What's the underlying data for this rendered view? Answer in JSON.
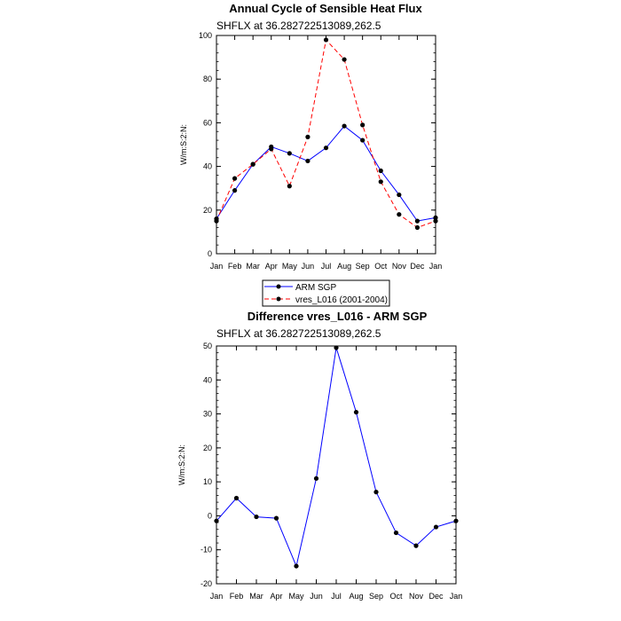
{
  "months": [
    "Jan",
    "Feb",
    "Mar",
    "Apr",
    "May",
    "Jun",
    "Jul",
    "Aug",
    "Sep",
    "Oct",
    "Nov",
    "Dec",
    "Jan"
  ],
  "chart_data": [
    {
      "type": "line",
      "title": "Annual Cycle of Sensible Heat Flux",
      "subtitle": "SHFLX at 36.282722513089,262.5",
      "ylabel": "W/m:S:2:N:",
      "ylim": [
        0,
        100
      ],
      "yticks": [
        "0",
        "20",
        "40",
        "60",
        "80",
        "100"
      ],
      "series": [
        {
          "name": "ARM SGP",
          "color": "#0000ff",
          "dash": "solid",
          "values": [
            16.0,
            29.0,
            41.0,
            49.0,
            46.0,
            42.5,
            48.5,
            58.5,
            52.0,
            38.0,
            27.0,
            15.0,
            16.5
          ]
        },
        {
          "name": "vres_L016 (2001-2004)",
          "color": "#ff0000",
          "dash": "dashed",
          "values": [
            15.0,
            34.5,
            41.0,
            48.0,
            31.0,
            53.5,
            98.0,
            89.0,
            59.0,
            33.0,
            18.0,
            12.0,
            15.0
          ]
        }
      ],
      "legend": [
        "ARM SGP",
        "vres_L016 (2001-2004)"
      ]
    },
    {
      "type": "line",
      "title": "Difference vres_L016 - ARM SGP",
      "subtitle": "SHFLX at 36.282722513089,262.5",
      "ylabel": "W/m:S:2:N:",
      "ylim": [
        -20,
        50
      ],
      "yticks": [
        "-20",
        "-10",
        "0",
        "10",
        "20",
        "30",
        "40",
        "50"
      ],
      "series": [
        {
          "name": "Difference",
          "color": "#0000ff",
          "dash": "solid",
          "values": [
            -1.5,
            5.2,
            -0.3,
            -0.7,
            -14.8,
            11.0,
            49.5,
            30.5,
            7.0,
            -5.0,
            -8.8,
            -3.3,
            -1.5
          ]
        }
      ]
    }
  ]
}
